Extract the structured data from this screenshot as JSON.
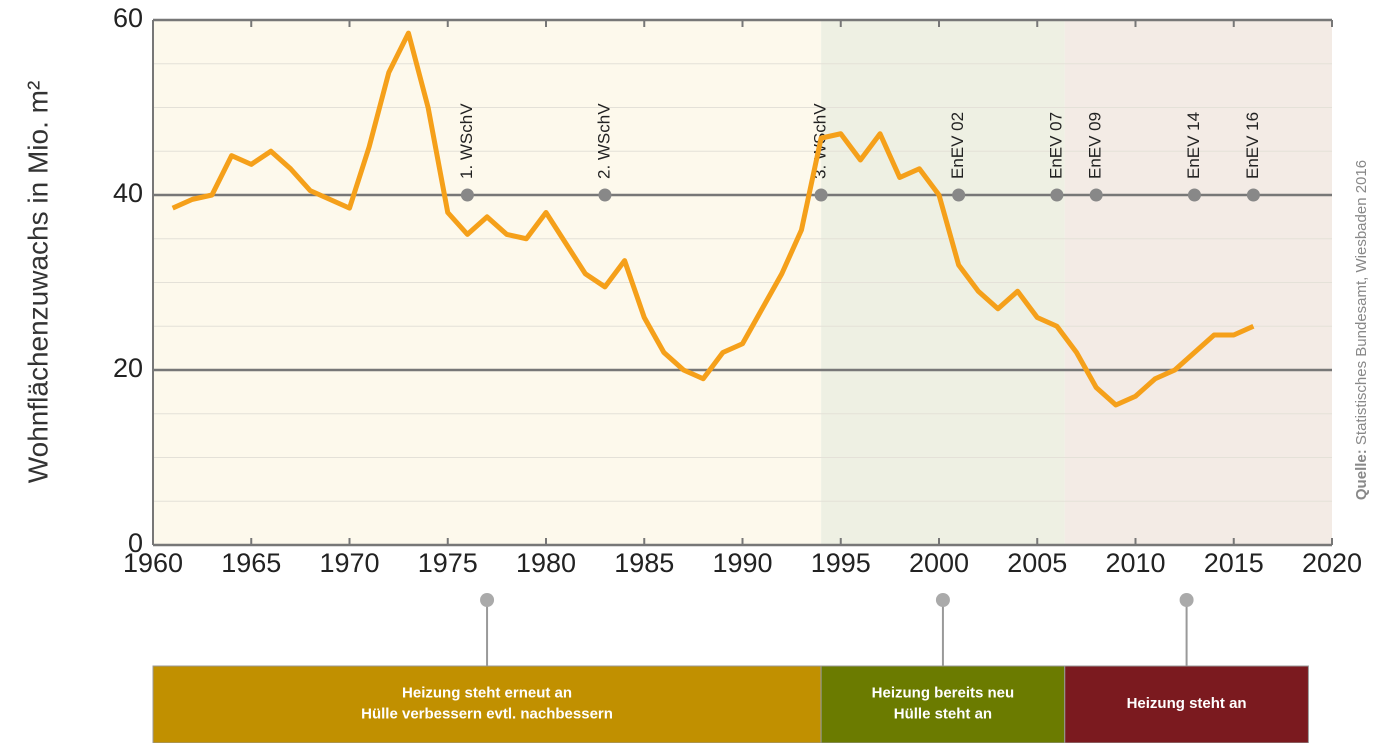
{
  "chart_data": {
    "type": "line",
    "y_label": "Wohnflächenzuwachs in Mio. m²",
    "source_label": "Quelle:",
    "source": "Statistisches Bundesamt, Wiesbaden 2016",
    "x": [
      1961,
      1962,
      1963,
      1964,
      1965,
      1966,
      1967,
      1968,
      1969,
      1970,
      1971,
      1972,
      1973,
      1974,
      1975,
      1976,
      1977,
      1978,
      1979,
      1980,
      1981,
      1982,
      1983,
      1984,
      1985,
      1986,
      1987,
      1988,
      1989,
      1990,
      1991,
      1992,
      1993,
      1994,
      1995,
      1996,
      1997,
      1998,
      1999,
      2000,
      2001,
      2002,
      2003,
      2004,
      2005,
      2006,
      2007,
      2008,
      2009,
      2010,
      2011,
      2012,
      2013,
      2014,
      2015,
      2016
    ],
    "series": [
      {
        "color": "#f5a01a",
        "values": [
          38.5,
          39.5,
          40,
          44.5,
          43.5,
          45,
          43,
          40.5,
          39.5,
          38.5,
          45.5,
          54,
          58.5,
          50,
          38,
          35.5,
          37.5,
          35.5,
          35,
          38,
          34.5,
          31,
          29.5,
          32.5,
          26,
          22,
          20,
          19,
          22,
          23,
          27,
          31,
          36,
          46.5,
          47,
          44,
          47,
          42,
          43,
          40,
          32,
          29,
          27,
          29,
          26,
          25,
          22,
          18,
          16,
          17,
          19,
          20,
          22,
          24,
          24,
          25
        ]
      }
    ],
    "xlim": [
      1960,
      2020
    ],
    "ylim": [
      0,
      60
    ],
    "xticks": [
      1960,
      1965,
      1970,
      1975,
      1980,
      1985,
      1990,
      1995,
      2000,
      2005,
      2010,
      2015,
      2020
    ],
    "yticks": [
      0,
      20,
      40,
      60
    ],
    "minor_yticks": [
      5,
      10,
      15,
      25,
      30,
      35,
      45,
      50,
      55
    ],
    "regulations": [
      {
        "label": "1. WSchV",
        "x": 1976,
        "y": 40
      },
      {
        "label": "2. WSchV",
        "x": 1983,
        "y": 40
      },
      {
        "label": "3. WSchV",
        "x": 1994,
        "y": 40
      },
      {
        "label": "EnEV 02",
        "x": 2001,
        "y": 40
      },
      {
        "label": "EnEV 07",
        "x": 2006,
        "y": 40
      },
      {
        "label": "EnEV 09",
        "x": 2008,
        "y": 40
      },
      {
        "label": "EnEV 14",
        "x": 2013,
        "y": 40
      },
      {
        "label": "EnEV 16",
        "x": 2016,
        "y": 40
      }
    ],
    "phases": [
      {
        "start": 1960,
        "end": 1994,
        "background": "#fdf9ec",
        "color": "#c19000",
        "lines": [
          "Heizung steht erneut an",
          "Hülle verbessern evtl. nachbessern"
        ]
      },
      {
        "start": 1994,
        "end": 2006.4,
        "background": "#eef0e3",
        "color": "#6b7b00",
        "lines": [
          "Heizung bereits neu",
          "Hülle steht an"
        ]
      },
      {
        "start": 2006.4,
        "end": 2018.8,
        "background": "#f3ebe5",
        "color": "#7b1a1f",
        "lines": [
          "Heizung steht an"
        ]
      }
    ]
  }
}
